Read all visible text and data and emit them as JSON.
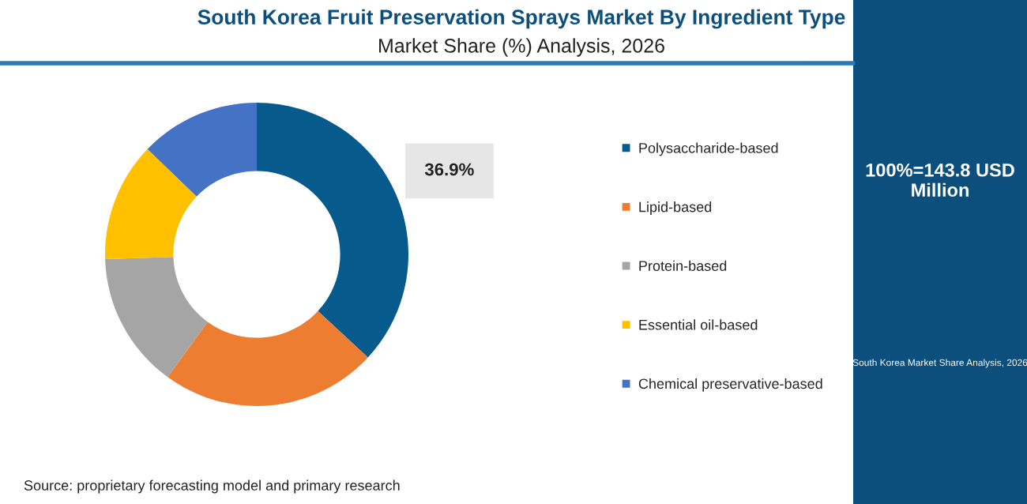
{
  "chart_data": {
    "type": "donut",
    "title": "South Korea Fruit Preservation Sprays Market By Ingredient Type",
    "subtitle": "Market Share (%) Analysis, 2026",
    "categories": [
      "Polysaccharide-based",
      "Lipid-based",
      "Protein-based",
      "Essential oil-based",
      "Chemical preservative-based"
    ],
    "values": [
      36.9,
      23.1,
      14.5,
      12.7,
      12.8
    ],
    "colors": [
      "#065a8c",
      "#ed7d31",
      "#a5a5a5",
      "#ffc000",
      "#4472c4"
    ],
    "value_labels": [
      "36.9%",
      null,
      null,
      null,
      null
    ],
    "legend": "right",
    "annotations": [
      "100%=143.8 USD Million",
      "South Korea Market Share Analysis, 2026",
      "Source: proprietary forecasting model and primary research"
    ]
  }
}
